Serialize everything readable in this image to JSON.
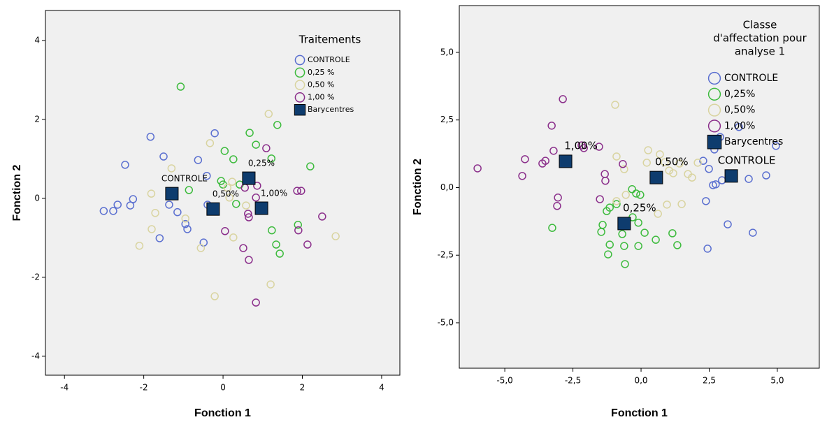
{
  "chart_data": [
    {
      "type": "scatter",
      "x_label": "Fonction 1",
      "y_label": "Fonction 2",
      "xlim": [
        -4.48,
        4.46
      ],
      "ylim": [
        -4.48,
        4.76
      ],
      "xticks": [
        -4,
        -2,
        0,
        2,
        4
      ],
      "yticks": [
        -4,
        -2,
        0,
        2,
        4
      ],
      "legend_title": "Traitements",
      "series": [
        {
          "name": "CONTROLE",
          "color": "#5a6fd0",
          "x": [
            -2.47,
            -1.83,
            -1.5,
            -3.01,
            -2.77,
            -2.66,
            -2.34,
            -2.27,
            -1.36,
            -1.15,
            -1.6,
            -0.95,
            -0.9,
            -0.63,
            -0.21,
            -0.49,
            -0.39,
            -0.41
          ],
          "y": [
            0.85,
            1.56,
            1.06,
            -0.32,
            -0.32,
            -0.16,
            -0.18,
            -0.02,
            -0.16,
            -0.35,
            -1.01,
            -0.65,
            -0.78,
            0.97,
            1.65,
            -1.12,
            -0.16,
            0.57
          ]
        },
        {
          "name": "0,25 %",
          "color": "#3dbb3d",
          "x": [
            -1.07,
            0.04,
            0.67,
            0.83,
            1.37,
            1.22,
            0.26,
            0.42,
            -0.05,
            0.0,
            0.33,
            -0.86,
            1.23,
            1.34,
            1.43,
            1.89,
            2.2
          ],
          "y": [
            2.83,
            1.2,
            1.66,
            1.36,
            1.86,
            1.01,
            0.99,
            0.35,
            0.44,
            0.35,
            -0.14,
            0.21,
            -0.81,
            -1.17,
            -1.4,
            -0.67,
            0.81
          ]
        },
        {
          "name": "0,50 %",
          "color": "#d9d4a0",
          "x": [
            -1.3,
            -1.81,
            -1.71,
            -1.8,
            -2.11,
            -0.95,
            -0.56,
            -0.33,
            1.15,
            0.23,
            0.11,
            0.16,
            0.26,
            -0.21,
            1.2,
            2.84,
            0.58
          ],
          "y": [
            0.76,
            0.12,
            -0.37,
            -0.78,
            -1.2,
            -0.51,
            -1.26,
            1.4,
            2.14,
            0.42,
            0.27,
            0.02,
            -0.99,
            -2.48,
            -2.18,
            -0.96,
            -0.18
          ]
        },
        {
          "name": "1,00 %",
          "color": "#8b2f8b",
          "x": [
            0.55,
            0.83,
            0.86,
            1.09,
            0.65,
            0.63,
            0.05,
            0.51,
            0.65,
            0.83,
            1.87,
            1.97,
            1.9,
            2.13,
            2.5
          ],
          "y": [
            0.27,
            0.02,
            0.32,
            1.27,
            -0.48,
            -0.39,
            -0.83,
            -1.26,
            -1.56,
            -2.64,
            0.19,
            0.19,
            -0.81,
            -1.17,
            -0.46
          ]
        }
      ],
      "centroids": {
        "name": "Barycentres",
        "color": "#0e3c6e",
        "labels": [
          "CONTROLE",
          "0,25%",
          "0,50%",
          "1,00%"
        ],
        "x": [
          -1.29,
          0.65,
          -0.25,
          0.97
        ],
        "y": [
          0.12,
          0.51,
          -0.27,
          -0.25
        ]
      }
    },
    {
      "type": "scatter",
      "x_label": "Fonction 1",
      "y_label": "Fonction 2",
      "xlim": [
        -6.67,
        6.54
      ],
      "ylim": [
        -6.68,
        6.73
      ],
      "xticks": [
        {
          "value": -5,
          "label": "-5,0"
        },
        {
          "value": -2.5,
          "label": "-2,5"
        },
        {
          "value": 0,
          "label": "0,0"
        },
        {
          "value": 2.5,
          "label": "2,5"
        },
        {
          "value": 5,
          "label": "5,0"
        }
      ],
      "yticks": [
        {
          "value": -5,
          "label": "-5,0"
        },
        {
          "value": -2.5,
          "label": "-2,5"
        },
        {
          "value": 0,
          "label": "0,0"
        },
        {
          "value": 2.5,
          "label": "2,5"
        },
        {
          "value": 5,
          "label": "5,0"
        }
      ],
      "legend_title": [
        "Classe",
        "d'affectation pour",
        "analyse 1"
      ],
      "series": [
        {
          "name": "CONTROLE",
          "color": "#5a6fd0",
          "x": [
            2.28,
            2.69,
            2.9,
            3.59,
            4.95,
            2.49,
            2.64,
            2.74,
            2.97,
            3.95,
            4.59,
            2.38,
            3.18,
            4.1,
            2.44
          ],
          "y": [
            0.99,
            1.41,
            1.87,
            2.24,
            1.54,
            0.69,
            0.09,
            0.12,
            0.27,
            0.32,
            0.45,
            -0.5,
            -1.36,
            -1.67,
            -2.26
          ]
        },
        {
          "name": "0,25%",
          "color": "#3dbb3d",
          "x": [
            -3.26,
            -1.41,
            -1.46,
            -1.26,
            -1.15,
            -0.9,
            -1.15,
            -0.69,
            -1.21,
            -0.62,
            -0.59,
            -0.1,
            0.13,
            0.54,
            1.15,
            1.33,
            -0.33,
            -0.18,
            -0.03,
            -0.31,
            -0.1
          ],
          "y": [
            -1.49,
            -1.38,
            -1.64,
            -0.87,
            -0.74,
            -0.61,
            -2.11,
            -1.72,
            -2.47,
            -2.16,
            -2.83,
            -2.16,
            -1.67,
            -1.93,
            -1.69,
            -2.13,
            -0.06,
            -0.22,
            -0.27,
            -1.1,
            -1.3
          ]
        },
        {
          "name": "0,50%",
          "color": "#d9d4a0",
          "x": [
            -0.95,
            -0.9,
            -0.62,
            0.21,
            0.26,
            0.69,
            0.87,
            1.03,
            1.18,
            1.41,
            2.08,
            1.72,
            1.87,
            0.95,
            0.62,
            1.49,
            -0.9,
            -0.56
          ],
          "y": [
            3.06,
            1.15,
            0.68,
            0.92,
            1.38,
            1.23,
            0.94,
            0.63,
            0.53,
            0.89,
            0.92,
            0.5,
            0.37,
            -0.63,
            -0.97,
            -0.61,
            -0.5,
            -0.27
          ]
        },
        {
          "name": "1,00%",
          "color": "#8b2f8b",
          "x": [
            -2.87,
            -3.28,
            -3.21,
            -3.51,
            -3.62,
            -4.26,
            -4.36,
            -6.0,
            -3.05,
            -3.08,
            -2.18,
            -1.54,
            -1.31,
            -1.33,
            -1.51,
            -0.67,
            -2.1
          ],
          "y": [
            3.27,
            2.29,
            1.36,
            0.99,
            0.89,
            1.05,
            0.43,
            0.71,
            -0.37,
            -0.68,
            1.56,
            1.51,
            0.25,
            0.5,
            -0.43,
            0.87,
            1.46
          ]
        }
      ],
      "centroids": {
        "name": "Barycentres",
        "color": "#0e3c6e",
        "labels": [
          "CONTROLE",
          "0,25%",
          "0,50%",
          "1,00%"
        ],
        "x": [
          3.31,
          -0.62,
          0.56,
          -2.77
        ],
        "y": [
          0.43,
          -1.33,
          0.37,
          0.97
        ]
      }
    }
  ]
}
